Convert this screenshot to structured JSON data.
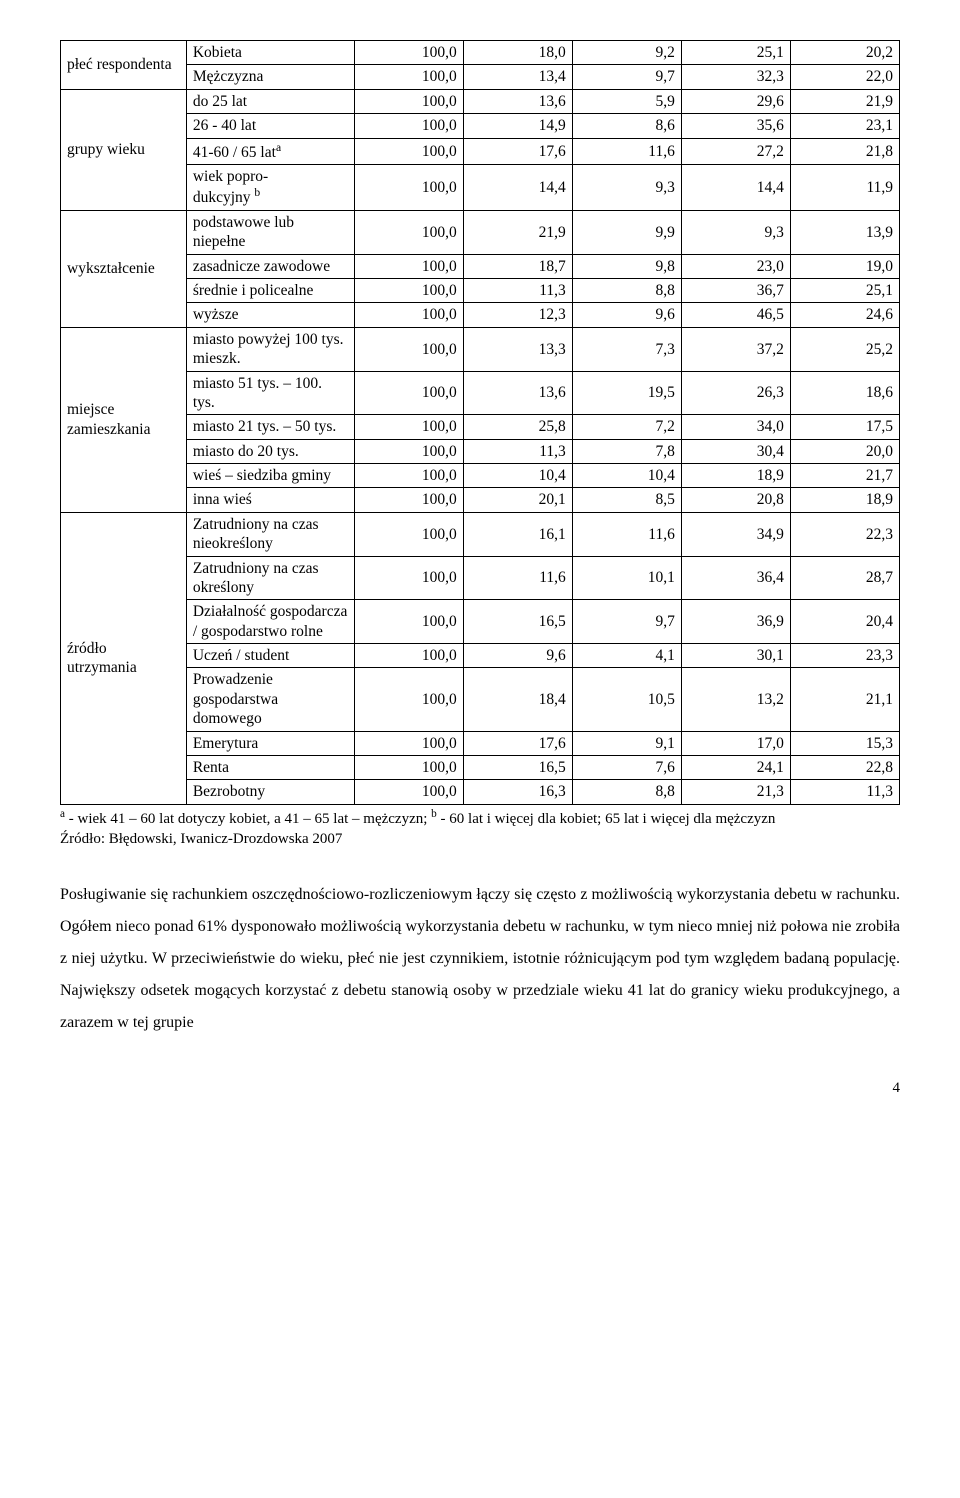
{
  "table": {
    "groups": [
      {
        "header": "płeć respondenta",
        "rows": [
          {
            "label": "Kobieta",
            "v": [
              "100,0",
              "18,0",
              "9,2",
              "25,1",
              "20,2"
            ]
          },
          {
            "label": "Mężczyzna",
            "v": [
              "100,0",
              "13,4",
              "9,7",
              "32,3",
              "22,0"
            ]
          }
        ]
      },
      {
        "header": "grupy wieku",
        "rows": [
          {
            "label": "do 25 lat",
            "v": [
              "100,0",
              "13,6",
              "5,9",
              "29,6",
              "21,9"
            ]
          },
          {
            "label": "26 - 40 lat",
            "v": [
              "100,0",
              "14,9",
              "8,6",
              "35,6",
              "23,1"
            ]
          },
          {
            "label_html": "41-60 / 65 lat<sup>a</sup>",
            "v": [
              "100,0",
              "17,6",
              "11,6",
              "27,2",
              "21,8"
            ]
          },
          {
            "label_html": "wiek popro-<br>dukcyjny <sup>b</sup>",
            "v": [
              "100,0",
              "14,4",
              "9,3",
              "14,4",
              "11,9"
            ]
          }
        ]
      },
      {
        "header": "wykształcenie",
        "rows": [
          {
            "label": "podstawowe lub niepełne",
            "v": [
              "100,0",
              "21,9",
              "9,9",
              "9,3",
              "13,9"
            ]
          },
          {
            "label": "zasadnicze zawodowe",
            "v": [
              "100,0",
              "18,7",
              "9,8",
              "23,0",
              "19,0"
            ]
          },
          {
            "label": "średnie i policealne",
            "v": [
              "100,0",
              "11,3",
              "8,8",
              "36,7",
              "25,1"
            ]
          },
          {
            "label": "wyższe",
            "v": [
              "100,0",
              "12,3",
              "9,6",
              "46,5",
              "24,6"
            ]
          }
        ]
      },
      {
        "header": "miejsce zamieszkania",
        "rows": [
          {
            "label": "miasto powyżej 100 tys. mieszk.",
            "v": [
              "100,0",
              "13,3",
              "7,3",
              "37,2",
              "25,2"
            ]
          },
          {
            "label": "miasto 51 tys. – 100. tys.",
            "v": [
              "100,0",
              "13,6",
              "19,5",
              "26,3",
              "18,6"
            ]
          },
          {
            "label": "miasto 21 tys. – 50 tys.",
            "v": [
              "100,0",
              "25,8",
              "7,2",
              "34,0",
              "17,5"
            ]
          },
          {
            "label": "miasto do 20 tys.",
            "v": [
              "100,0",
              "11,3",
              "7,8",
              "30,4",
              "20,0"
            ]
          },
          {
            "label": "wieś – siedziba gminy",
            "v": [
              "100,0",
              "10,4",
              "10,4",
              "18,9",
              "21,7"
            ]
          },
          {
            "label": "inna wieś",
            "v": [
              "100,0",
              "20,1",
              "8,5",
              "20,8",
              "18,9"
            ]
          }
        ]
      },
      {
        "header": "źródło utrzymania",
        "rows": [
          {
            "label": "Zatrudniony na czas nieokreślony",
            "v": [
              "100,0",
              "16,1",
              "11,6",
              "34,9",
              "22,3"
            ]
          },
          {
            "label": "Zatrudniony na czas określony",
            "v": [
              "100,0",
              "11,6",
              "10,1",
              "36,4",
              "28,7"
            ]
          },
          {
            "label": "Działalność gospodarcza / gospodarstwo rolne",
            "v": [
              "100,0",
              "16,5",
              "9,7",
              "36,9",
              "20,4"
            ]
          },
          {
            "label": "Uczeń / student",
            "v": [
              "100,0",
              "9,6",
              "4,1",
              "30,1",
              "23,3"
            ]
          },
          {
            "label": "Prowadzenie gospodarstwa domowego",
            "v": [
              "100,0",
              "18,4",
              "10,5",
              "13,2",
              "21,1"
            ]
          },
          {
            "label": "Emerytura",
            "v": [
              "100,0",
              "17,6",
              "9,1",
              "17,0",
              "15,3"
            ]
          },
          {
            "label": "Renta",
            "v": [
              "100,0",
              "16,5",
              "7,6",
              "24,1",
              "22,8"
            ]
          },
          {
            "label": "Bezrobotny",
            "v": [
              "100,0",
              "16,3",
              "8,8",
              "21,3",
              "11,3"
            ]
          }
        ]
      }
    ]
  },
  "footnote_html": "<sup>a</sup> - wiek 41 – 60 lat dotyczy kobiet, a 41 – 65 lat – mężczyzn; <sup>b</sup> - 60 lat i więcej dla kobiet; 65 lat i więcej dla mężczyzn",
  "source": "Źródło: Błędowski, Iwanicz-Drozdowska 2007",
  "body": "Posługiwanie się rachunkiem oszczędnościowo-rozliczeniowym łączy się często z możliwością wykorzystania debetu w rachunku. Ogółem nieco ponad 61% dysponowało możliwością wykorzystania debetu w rachunku, w tym nieco mniej niż połowa nie zrobiła z niej użytku. W przeciwieństwie do wieku, płeć nie jest czynnikiem, istotnie różnicującym pod tym względem badaną populację. Największy odsetek mogących korzystać z debetu stanowią osoby w przedziale wieku 41 lat do granicy wieku produkcyjnego, a zarazem w tej grupie",
  "page_number": "4"
}
